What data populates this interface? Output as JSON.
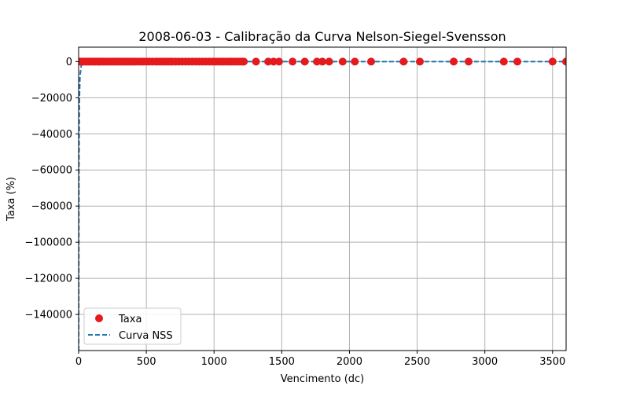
{
  "chart_data": {
    "type": "scatter",
    "title": "2008-06-03 - Calibração da Curva Nelson-Siegel-Svensson",
    "xlabel": "Vencimento (dc)",
    "ylabel": "Taxa (%)",
    "xlim": [
      0,
      3600
    ],
    "ylim": [
      -160000,
      8000
    ],
    "xticks": [
      0,
      500,
      1000,
      1500,
      2000,
      2500,
      3000,
      3500
    ],
    "xtick_labels": [
      "0",
      "500",
      "1000",
      "1500",
      "2000",
      "2500",
      "3000",
      "3500"
    ],
    "yticks": [
      0,
      -20000,
      -40000,
      -60000,
      -80000,
      -100000,
      -120000,
      -140000
    ],
    "ytick_labels": [
      "0",
      "−20000",
      "−40000",
      "−60000",
      "−80000",
      "−100000",
      "−120000",
      "−140000"
    ],
    "grid": true,
    "legend_position": "lower-left",
    "series": [
      {
        "name": "Taxa",
        "kind": "scatter",
        "color": "#e41a1c",
        "x": [
          5,
          20,
          28,
          40,
          55,
          70,
          82,
          95,
          110,
          125,
          140,
          150,
          165,
          180,
          195,
          210,
          225,
          240,
          255,
          270,
          285,
          300,
          315,
          330,
          345,
          360,
          375,
          390,
          405,
          420,
          440,
          460,
          480,
          500,
          520,
          545,
          570,
          590,
          610,
          630,
          650,
          670,
          690,
          715,
          740,
          765,
          790,
          815,
          840,
          865,
          890,
          915,
          940,
          965,
          990,
          1010,
          1030,
          1050,
          1070,
          1090,
          1110,
          1130,
          1150,
          1170,
          1190,
          1210,
          1220,
          1310,
          1400,
          1440,
          1480,
          1580,
          1670,
          1760,
          1800,
          1850,
          1950,
          2040,
          2160,
          2400,
          2520,
          2770,
          2880,
          3140,
          3240,
          3500,
          3600
        ],
        "y": [
          12,
          12,
          12,
          12,
          12,
          12,
          12,
          12,
          12,
          12,
          12,
          12,
          12,
          12,
          12,
          12,
          12,
          12,
          12,
          12,
          12,
          12,
          12,
          12,
          12,
          12,
          12,
          12,
          12,
          12,
          12,
          12,
          12,
          12,
          12,
          12,
          12,
          12,
          12,
          12,
          12,
          12,
          12,
          12,
          12,
          12,
          12,
          12,
          12,
          12,
          12,
          12,
          12,
          12,
          12,
          12,
          12,
          12,
          12,
          12,
          12,
          12,
          12,
          12,
          12,
          12,
          12,
          12,
          12,
          12,
          12,
          12,
          12,
          12,
          12,
          12,
          12,
          12,
          12,
          12,
          12,
          12,
          12,
          12,
          12,
          12,
          12
        ]
      },
      {
        "name": "Curva NSS",
        "kind": "line",
        "style": "dashed",
        "color": "#1f77b4",
        "x": [
          0,
          2,
          5,
          10,
          20,
          50,
          100,
          500,
          1000,
          2000,
          3000,
          3600
        ],
        "y": [
          -160000,
          -60000,
          -22000,
          -8000,
          -2000,
          -200,
          0,
          10,
          12,
          12,
          12,
          12
        ]
      }
    ]
  }
}
